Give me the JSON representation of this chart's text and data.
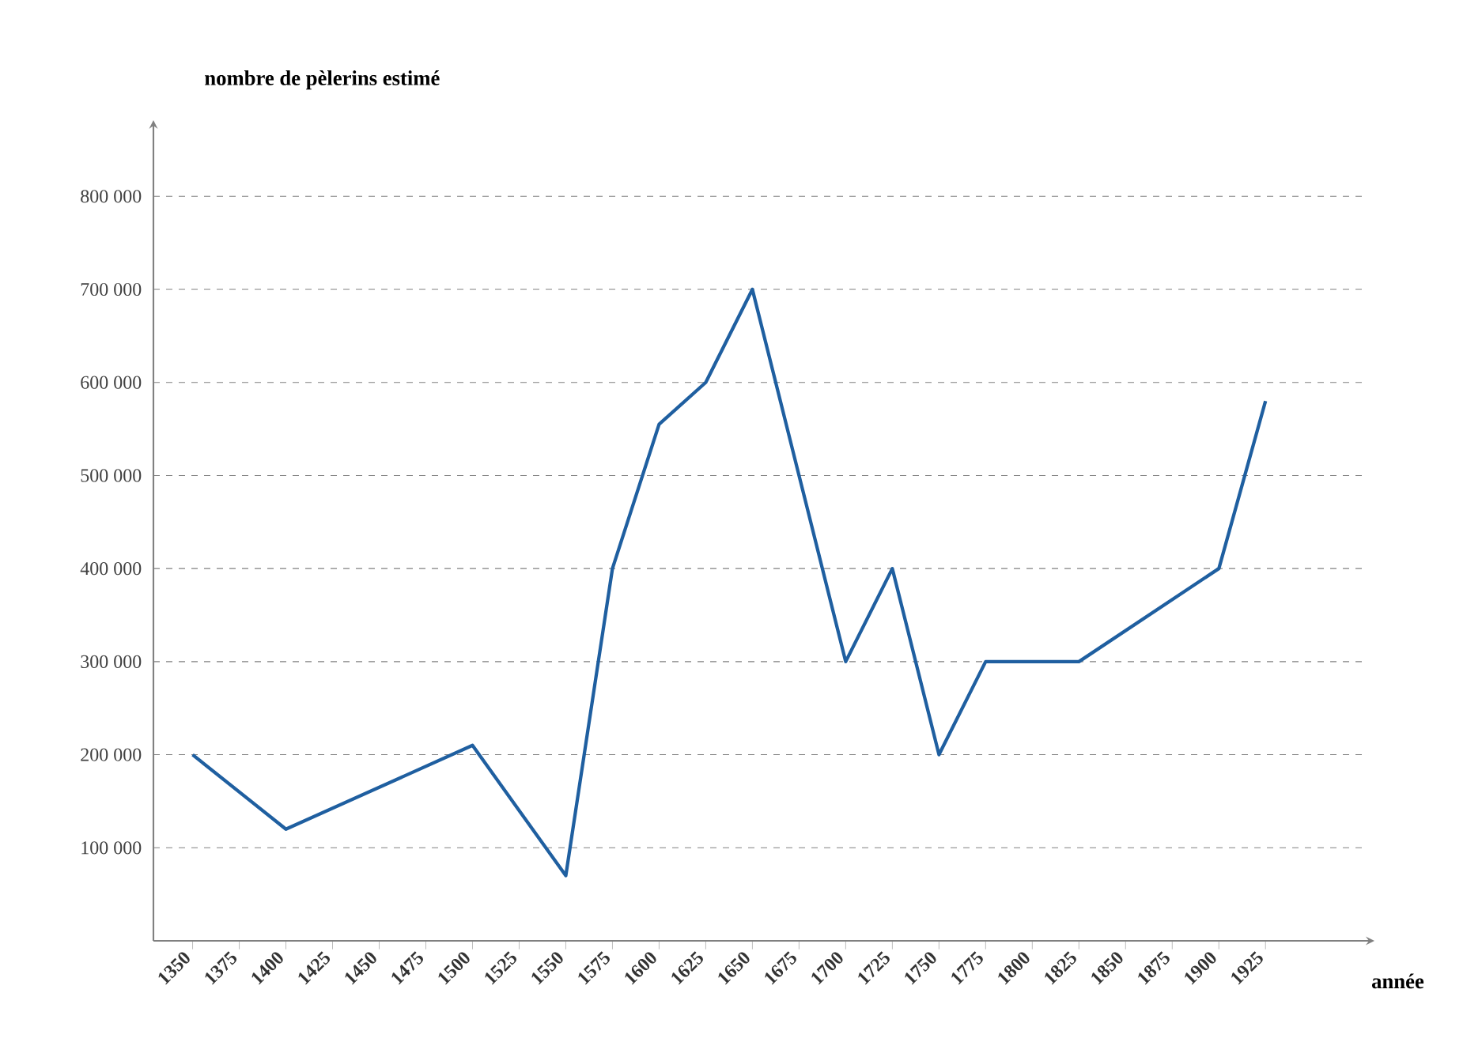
{
  "chart_data": {
    "type": "line",
    "xlabel": "année",
    "ylabel": "nombre de pèlerins estimé",
    "x": [
      1350,
      1400,
      1500,
      1550,
      1575,
      1600,
      1625,
      1650,
      1675,
      1700,
      1725,
      1750,
      1775,
      1825,
      1900,
      1925
    ],
    "values": [
      200000,
      120000,
      210000,
      70000,
      400000,
      555000,
      600000,
      700000,
      500000,
      300000,
      400000,
      200000,
      300000,
      300000,
      400000,
      580000
    ],
    "color": "#1f5fa0",
    "marker": "none",
    "line_style": "solid",
    "grid": "y",
    "xlim": [
      1329,
      1980
    ],
    "ylim": [
      0,
      875000
    ],
    "xticks": [
      1350,
      1375,
      1400,
      1425,
      1450,
      1475,
      1500,
      1525,
      1550,
      1575,
      1600,
      1625,
      1650,
      1675,
      1700,
      1725,
      1750,
      1775,
      1800,
      1825,
      1850,
      1875,
      1900,
      1925
    ],
    "yticks": [
      {
        "value": 100000,
        "label": "100 000"
      },
      {
        "value": 200000,
        "label": "200 000"
      },
      {
        "value": 300000,
        "label": "300 000"
      },
      {
        "value": 400000,
        "label": "400 000"
      },
      {
        "value": 500000,
        "label": "500 000"
      },
      {
        "value": 600000,
        "label": "600 000"
      },
      {
        "value": 700000,
        "label": "700 000"
      },
      {
        "value": 800000,
        "label": "800 000"
      }
    ]
  }
}
